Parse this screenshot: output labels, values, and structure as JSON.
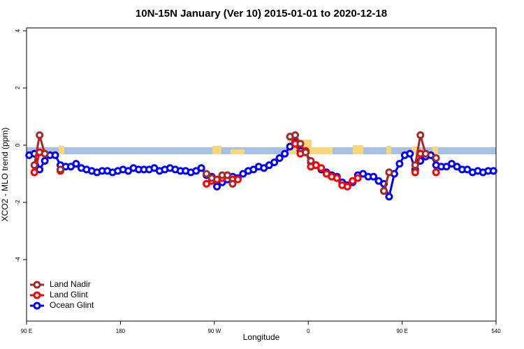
{
  "chart_data": {
    "type": "line",
    "title": "10N-15N January (Ver 10)   2015-01-01 to 2020-12-18",
    "x_label": "Longitude",
    "y_label": "XCO2 - MLO trend (ppm)",
    "xlim": [
      90,
      540
    ],
    "ylim": [
      -6.15,
      4.1
    ],
    "xticks": [
      {
        "value": 90,
        "label": "90 E"
      },
      180,
      {
        "value": 270,
        "label": "90 W"
      },
      {
        "value": 360,
        "label": "0"
      },
      {
        "value": 450,
        "label": "90 E"
      },
      540
    ],
    "yticks": [
      4,
      2,
      0,
      -2,
      -4
    ],
    "legend": "bottomleft",
    "x": [
      92.5,
      97.5,
      102.5,
      107.5,
      112.5,
      117.5,
      122.5,
      127.5,
      132.5,
      137.5,
      142.5,
      147.5,
      152.5,
      157.5,
      162.5,
      167.5,
      172.5,
      177.5,
      182.5,
      187.5,
      192.5,
      197.5,
      202.5,
      207.5,
      212.5,
      217.5,
      222.5,
      227.5,
      232.5,
      237.5,
      242.5,
      247.5,
      252.5,
      257.5,
      262.5,
      267.5,
      272.5,
      277.5,
      282.5,
      287.5,
      292.5,
      297.5,
      302.5,
      307.5,
      312.5,
      317.5,
      322.5,
      327.5,
      332.5,
      337.5,
      342.5,
      347.5,
      352.5,
      357.5,
      362.5,
      367.5,
      372.5,
      377.5,
      382.5,
      387.5,
      392.5,
      397.5,
      402.5,
      407.5,
      412.5,
      417.5,
      422.5,
      427.5,
      432.5,
      437.5,
      442.5,
      447.5,
      452.5,
      457.5,
      462.5,
      467.5,
      472.5,
      477.5,
      482.5,
      487.5,
      492.5,
      497.5,
      502.5,
      507.5,
      512.5,
      517.5,
      522.5,
      527.5,
      532.5,
      537.5
    ],
    "series": [
      {
        "name": "Land Nadir",
        "color": "#a52a2a",
        "values": [
          null,
          -0.7,
          0.35,
          -0.3,
          null,
          null,
          -0.85,
          null,
          null,
          null,
          null,
          null,
          null,
          null,
          null,
          null,
          null,
          null,
          null,
          null,
          null,
          null,
          null,
          null,
          null,
          null,
          null,
          null,
          null,
          null,
          null,
          null,
          null,
          null,
          -1.0,
          -1.15,
          null,
          -1.05,
          -1.05,
          -1.35,
          null,
          null,
          null,
          null,
          null,
          null,
          null,
          null,
          null,
          null,
          0.3,
          0.35,
          0.05,
          -0.25,
          -0.55,
          null,
          null,
          null,
          null,
          null,
          null,
          null,
          null,
          null,
          null,
          null,
          null,
          null,
          -1.6,
          -0.95,
          null,
          null,
          null,
          null,
          -0.7,
          0.35,
          -0.3,
          null,
          -0.45,
          null,
          null,
          null,
          null,
          null,
          null,
          null,
          null,
          null,
          null,
          null
        ]
      },
      {
        "name": "Land Glint",
        "color": "#ff0000",
        "values": [
          null,
          -0.95,
          -0.25,
          -0.3,
          null,
          null,
          -0.9,
          null,
          null,
          null,
          null,
          null,
          null,
          null,
          null,
          null,
          null,
          null,
          null,
          null,
          null,
          null,
          null,
          null,
          null,
          null,
          null,
          null,
          null,
          null,
          null,
          null,
          null,
          null,
          -1.35,
          -1.25,
          -1.2,
          -1.15,
          -1.05,
          -1.2,
          -1.2,
          null,
          null,
          null,
          null,
          null,
          null,
          null,
          null,
          null,
          0.3,
          0.05,
          -0.3,
          -0.2,
          -0.75,
          -0.7,
          -0.8,
          -1.0,
          -1.1,
          -1.15,
          -1.4,
          -1.45,
          -1.25,
          -1.15,
          null,
          null,
          null,
          null,
          -1.6,
          -0.95,
          null,
          null,
          null,
          null,
          -0.95,
          -0.3,
          -0.3,
          null,
          -0.95,
          null,
          null,
          null,
          null,
          null,
          null,
          null,
          null,
          null,
          null,
          null
        ]
      },
      {
        "name": "Ocean Glint",
        "color": "#0000ff",
        "values": [
          -0.35,
          -0.3,
          -0.85,
          -0.55,
          -0.35,
          -0.35,
          -0.7,
          -0.75,
          -0.75,
          -0.65,
          -0.8,
          -0.85,
          -0.9,
          -0.95,
          -0.9,
          -0.9,
          -0.95,
          -0.9,
          -0.85,
          -0.9,
          -0.8,
          -0.85,
          -0.85,
          -0.85,
          -0.8,
          -0.9,
          -0.85,
          -0.8,
          -0.85,
          -0.9,
          -0.9,
          -0.95,
          -0.9,
          -0.8,
          -1.05,
          -1.1,
          -1.45,
          -1.3,
          -1.2,
          -1.1,
          -1.15,
          -1.0,
          -0.9,
          -0.85,
          -0.75,
          -0.8,
          -0.7,
          -0.6,
          -0.45,
          -0.3,
          -0.05,
          0.1,
          -0.2,
          -0.25,
          -0.6,
          -0.7,
          -0.85,
          -0.95,
          -1.05,
          -1.1,
          -1.3,
          -1.4,
          -1.3,
          -1.05,
          -1.0,
          -1.1,
          -1.1,
          -1.25,
          -1.35,
          -1.8,
          -1.0,
          -0.65,
          -0.35,
          -0.3,
          -0.85,
          -0.55,
          -0.4,
          -0.35,
          -0.7,
          -0.75,
          -0.75,
          -0.65,
          -0.75,
          -0.85,
          -0.85,
          -0.95,
          -0.9,
          -0.95,
          -0.9,
          -0.9
        ]
      }
    ]
  }
}
